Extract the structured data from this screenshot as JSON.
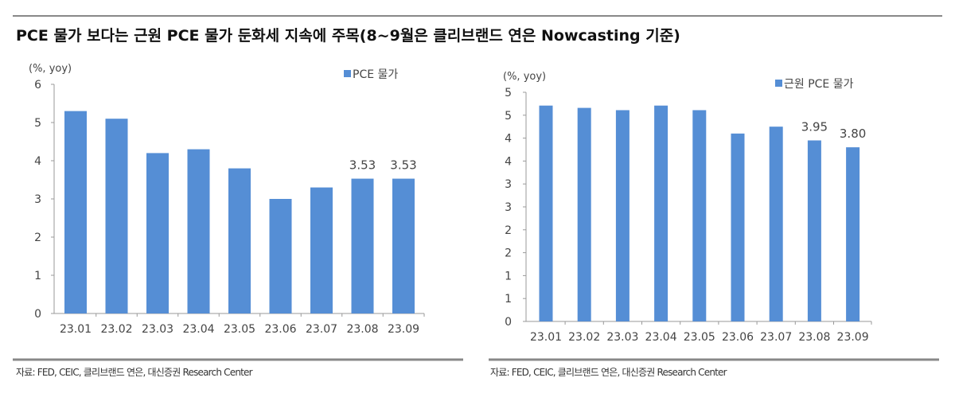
{
  "title": "PCE 물가 보다는 근원 PCE 물가 둔화세 지속에 주목(8~9월은 클리브랜드 연은 Nowcasting 기준)",
  "source_left": "자료: FED, CEIC, 클리브랜드 연은, 대신증권 Research Center",
  "source_right": "자료: FED, CEIC, 클리브랜드 연은, 대신증권 Research Center",
  "chart_data": [
    {
      "type": "bar",
      "unit_label": "(%, yoy)",
      "categories": [
        "23.01",
        "23.02",
        "23.03",
        "23.04",
        "23.05",
        "23.06",
        "23.07",
        "23.08",
        "23.09"
      ],
      "series": [
        {
          "name": "PCE 물가",
          "values": [
            5.3,
            5.1,
            4.2,
            4.3,
            3.8,
            3.0,
            3.3,
            3.53,
            3.53
          ],
          "color": "#558ed5"
        }
      ],
      "data_labels": {
        "7": "3.53",
        "8": "3.53"
      },
      "ylim": [
        0,
        6
      ],
      "yticks": [
        0,
        1,
        2,
        3,
        4,
        5,
        6
      ],
      "ytick_labels": [
        "0",
        "1",
        "2",
        "3",
        "4",
        "5",
        "6"
      ],
      "legend": "top-right",
      "grid": false
    },
    {
      "type": "bar",
      "unit_label": "(%, yoy)",
      "categories": [
        "23.01",
        "23.02",
        "23.03",
        "23.04",
        "23.05",
        "23.06",
        "23.07",
        "23.08",
        "23.09"
      ],
      "series": [
        {
          "name": "근원 PCE 물가",
          "values": [
            4.71,
            4.66,
            4.61,
            4.71,
            4.61,
            4.1,
            4.25,
            3.95,
            3.8
          ],
          "color": "#558ed5"
        }
      ],
      "data_labels": {
        "7": "3.95",
        "8": "3.80"
      },
      "ylim": [
        0,
        5
      ],
      "yticks": [
        0,
        0.5,
        1,
        1.5,
        2,
        2.5,
        3,
        3.5,
        4,
        4.5,
        5
      ],
      "ytick_labels": [
        "0",
        "1",
        "1",
        "2",
        "2",
        "3",
        "3",
        "4",
        "4",
        "5",
        "5"
      ],
      "legend": "top-right",
      "grid": false
    }
  ]
}
